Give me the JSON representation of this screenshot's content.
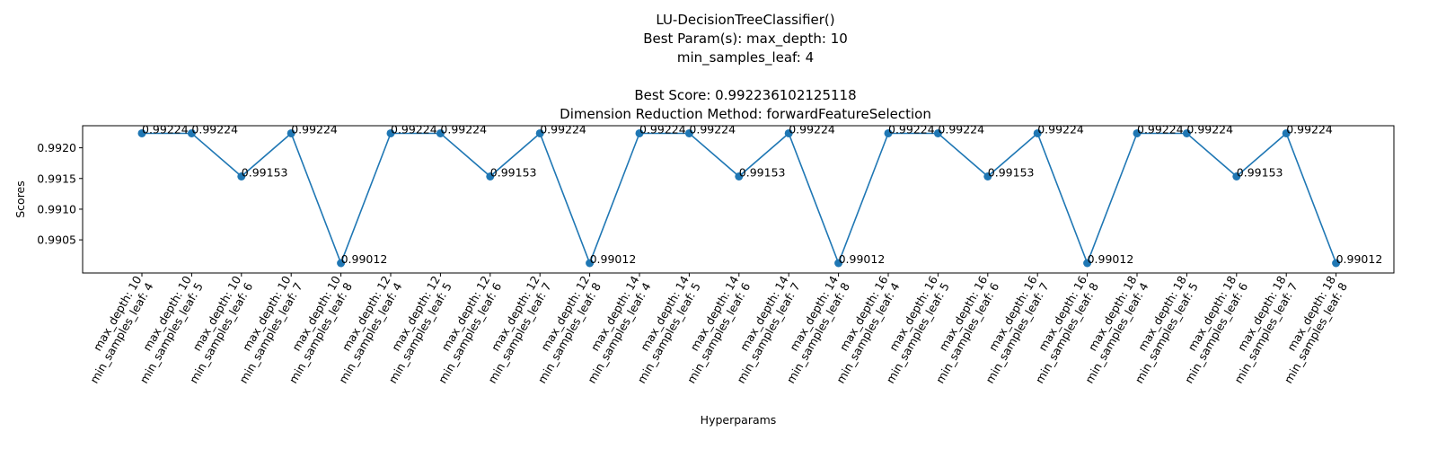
{
  "chart_data": {
    "type": "line",
    "title_lines": [
      "LU-DecisionTreeClassifier()",
      "Best Param(s): max_depth: 10",
      "min_samples_leaf: 4",
      "",
      "Best Score: 0.992236102125118",
      "Dimension Reduction Method: forwardFeatureSelection"
    ],
    "xlabel": "Hyperparams",
    "ylabel": "Scores",
    "ylim": [
      0.98996,
      0.99236
    ],
    "yticks": [
      "0.9905",
      "0.9910",
      "0.9915",
      "0.9920"
    ],
    "ytick_values": [
      0.9905,
      0.991,
      0.9915,
      0.992
    ],
    "grid": false,
    "color": "#1f77b4",
    "categories": [
      [
        "max_depth: 10",
        "min_samples_leaf: 4"
      ],
      [
        "max_depth: 10",
        "min_samples_leaf: 5"
      ],
      [
        "max_depth: 10",
        "min_samples_leaf: 6"
      ],
      [
        "max_depth: 10",
        "min_samples_leaf: 7"
      ],
      [
        "max_depth: 10",
        "min_samples_leaf: 8"
      ],
      [
        "max_depth: 12",
        "min_samples_leaf: 4"
      ],
      [
        "max_depth: 12",
        "min_samples_leaf: 5"
      ],
      [
        "max_depth: 12",
        "min_samples_leaf: 6"
      ],
      [
        "max_depth: 12",
        "min_samples_leaf: 7"
      ],
      [
        "max_depth: 12",
        "min_samples_leaf: 8"
      ],
      [
        "max_depth: 14",
        "min_samples_leaf: 4"
      ],
      [
        "max_depth: 14",
        "min_samples_leaf: 5"
      ],
      [
        "max_depth: 14",
        "min_samples_leaf: 6"
      ],
      [
        "max_depth: 14",
        "min_samples_leaf: 7"
      ],
      [
        "max_depth: 14",
        "min_samples_leaf: 8"
      ],
      [
        "max_depth: 16",
        "min_samples_leaf: 4"
      ],
      [
        "max_depth: 16",
        "min_samples_leaf: 5"
      ],
      [
        "max_depth: 16",
        "min_samples_leaf: 6"
      ],
      [
        "max_depth: 16",
        "min_samples_leaf: 7"
      ],
      [
        "max_depth: 16",
        "min_samples_leaf: 8"
      ],
      [
        "max_depth: 18",
        "min_samples_leaf: 4"
      ],
      [
        "max_depth: 18",
        "min_samples_leaf: 5"
      ],
      [
        "max_depth: 18",
        "min_samples_leaf: 6"
      ],
      [
        "max_depth: 18",
        "min_samples_leaf: 7"
      ],
      [
        "max_depth: 18",
        "min_samples_leaf: 8"
      ]
    ],
    "values": [
      0.992236,
      0.992236,
      0.991534,
      0.992236,
      0.990121,
      0.992236,
      0.992236,
      0.991534,
      0.992236,
      0.990121,
      0.992236,
      0.992236,
      0.991534,
      0.992236,
      0.990121,
      0.992236,
      0.992236,
      0.991534,
      0.992236,
      0.990121,
      0.992236,
      0.992236,
      0.991534,
      0.992236,
      0.990121
    ],
    "value_labels": [
      "0.99224",
      "0.99224",
      "0.99153",
      "0.99224",
      "0.99012",
      "0.99224",
      "0.99224",
      "0.99153",
      "0.99224",
      "0.99012",
      "0.99224",
      "0.99224",
      "0.99153",
      "0.99224",
      "0.99012",
      "0.99224",
      "0.99224",
      "0.99153",
      "0.99224",
      "0.99012",
      "0.99224",
      "0.99224",
      "0.99153",
      "0.99224",
      "0.99012"
    ]
  }
}
